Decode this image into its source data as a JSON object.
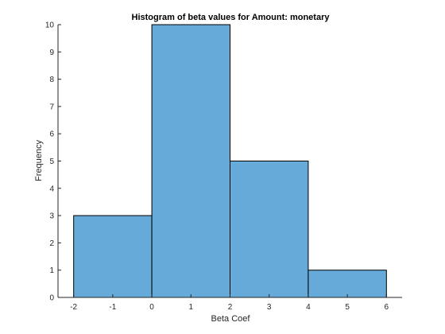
{
  "chart_data": {
    "type": "bar",
    "title": "Histogram of beta values for Amount: monetary",
    "xlabel": "Beta Coef",
    "ylabel": "Frequency",
    "bins": [
      {
        "x0": -2,
        "x1": 0,
        "value": 3
      },
      {
        "x0": 0,
        "x1": 2,
        "value": 10
      },
      {
        "x0": 2,
        "x1": 4,
        "value": 5
      },
      {
        "x0": 4,
        "x1": 6,
        "value": 1
      }
    ],
    "xlim": [
      -2.4,
      6.4
    ],
    "ylim": [
      0,
      10
    ],
    "xticks": [
      -2,
      -1,
      0,
      1,
      2,
      3,
      4,
      5,
      6
    ],
    "yticks": [
      0,
      1,
      2,
      3,
      4,
      5,
      6,
      7,
      8,
      9,
      10
    ],
    "bar_color": "#65aad8",
    "edge_color": "#000000",
    "grid": false,
    "legend": "none"
  }
}
